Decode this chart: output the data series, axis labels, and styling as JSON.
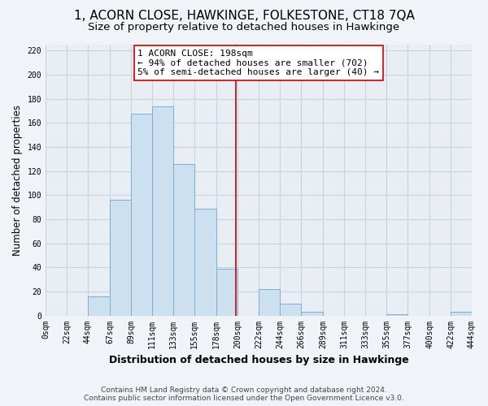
{
  "title": "1, ACORN CLOSE, HAWKINGE, FOLKESTONE, CT18 7QA",
  "subtitle": "Size of property relative to detached houses in Hawkinge",
  "xlabel": "Distribution of detached houses by size in Hawkinge",
  "ylabel": "Number of detached properties",
  "bar_color": "#cce0f0",
  "bar_edge_color": "#7ab0d0",
  "reference_line_x": 198,
  "reference_line_color": "#cc0000",
  "annotation_line1": "1 ACORN CLOSE: 198sqm",
  "annotation_line2": "← 94% of detached houses are smaller (702)",
  "annotation_line3": "5% of semi-detached houses are larger (40) →",
  "annotation_box_edge_color": "#cc0000",
  "annotation_box_bg_color": "#ffffff",
  "bin_edges": [
    0,
    22,
    44,
    67,
    89,
    111,
    133,
    155,
    178,
    200,
    222,
    244,
    266,
    289,
    311,
    333,
    355,
    377,
    400,
    422,
    444
  ],
  "bar_heights": [
    0,
    0,
    16,
    96,
    168,
    174,
    126,
    89,
    39,
    0,
    22,
    10,
    3,
    0,
    0,
    0,
    1,
    0,
    0,
    3
  ],
  "ylim": [
    0,
    225
  ],
  "yticks": [
    0,
    20,
    40,
    60,
    80,
    100,
    120,
    140,
    160,
    180,
    200,
    220
  ],
  "xtick_labels": [
    "0sqm",
    "22sqm",
    "44sqm",
    "67sqm",
    "89sqm",
    "111sqm",
    "133sqm",
    "155sqm",
    "178sqm",
    "200sqm",
    "222sqm",
    "244sqm",
    "266sqm",
    "289sqm",
    "311sqm",
    "333sqm",
    "355sqm",
    "377sqm",
    "400sqm",
    "422sqm",
    "444sqm"
  ],
  "footer_line1": "Contains HM Land Registry data © Crown copyright and database right 2024.",
  "footer_line2": "Contains public sector information licensed under the Open Government Licence v3.0.",
  "background_color": "#f0f4f8",
  "plot_bg_color": "#e8eef4",
  "grid_color": "#c8d4e0",
  "title_fontsize": 11,
  "subtitle_fontsize": 9.5,
  "axis_label_fontsize": 8.5,
  "tick_fontsize": 7,
  "footer_fontsize": 6.5,
  "annotation_fontsize": 8
}
